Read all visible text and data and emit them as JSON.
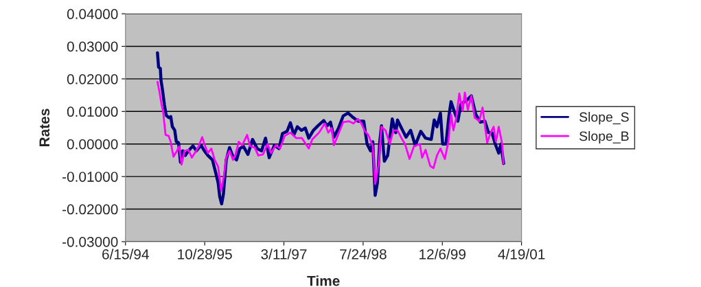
{
  "chart_data": {
    "type": "line",
    "xlabel": "Time",
    "ylabel": "Rates",
    "xlim": [
      "1994-06-15",
      "2001-04-19"
    ],
    "xticks": [
      {
        "value": "1994-06-15",
        "label": "6/15/94"
      },
      {
        "value": "1995-10-28",
        "label": "10/28/95"
      },
      {
        "value": "1997-03-11",
        "label": "3/11/97"
      },
      {
        "value": "1998-07-24",
        "label": "7/24/98"
      },
      {
        "value": "1999-12-06",
        "label": "12/6/99"
      },
      {
        "value": "2001-04-19",
        "label": "4/19/01"
      }
    ],
    "ylim": [
      -0.03,
      0.04
    ],
    "yticks": [
      {
        "value": -0.03,
        "label": "-0.03000"
      },
      {
        "value": -0.02,
        "label": "-0.02000"
      },
      {
        "value": -0.01,
        "label": "-0.01000"
      },
      {
        "value": 0,
        "label": "0.00000"
      },
      {
        "value": 0.01,
        "label": "0.01000"
      },
      {
        "value": 0.02,
        "label": "0.02000"
      },
      {
        "value": 0.03,
        "label": "0.03000"
      },
      {
        "value": 0.04,
        "label": "0.04000"
      }
    ],
    "grid": "y",
    "legend": "right",
    "marker": "none",
    "line_style": "solid",
    "series": [
      {
        "name": "Slope_S",
        "color": "#000080",
        "x": [
          "1995-01-03",
          "1995-01-10",
          "1995-01-21",
          "1995-01-25",
          "1995-02-04",
          "1995-02-16",
          "1995-02-27",
          "1995-03-16",
          "1995-03-28",
          "1995-04-07",
          "1995-04-22",
          "1995-05-02",
          "1995-05-16",
          "1995-05-28",
          "1995-06-11",
          "1995-06-28",
          "1995-07-17",
          "1995-08-15",
          "1995-09-06",
          "1995-10-05",
          "1995-10-26",
          "1995-11-17",
          "1995-12-16",
          "1996-01-07",
          "1996-01-21",
          "1996-01-31",
          "1996-02-12",
          "1996-02-23",
          "1996-03-12",
          "1996-04-02",
          "1996-04-24",
          "1996-05-16",
          "1996-06-06",
          "1996-06-28",
          "1996-07-27",
          "1996-08-25",
          "1996-09-23",
          "1996-10-21",
          "1996-11-15",
          "1996-12-08",
          "1997-01-10",
          "1997-02-08",
          "1997-03-02",
          "1997-03-31",
          "1997-04-21",
          "1997-05-13",
          "1997-06-04",
          "1997-06-30",
          "1997-07-24",
          "1997-08-15",
          "1997-09-13",
          "1997-10-12",
          "1997-11-17",
          "1997-12-09",
          "1997-12-30",
          "1998-01-21",
          "1998-02-19",
          "1998-03-20",
          "1998-04-20",
          "1998-05-16",
          "1998-06-22",
          "1998-07-28",
          "1998-08-18",
          "1998-09-09",
          "1998-09-23",
          "1998-10-08",
          "1998-10-22",
          "1998-11-06",
          "1998-11-17",
          "1998-12-05",
          "1998-12-26",
          "1999-01-24",
          "1999-02-15",
          "1999-02-26",
          "1999-03-16",
          "1999-04-21",
          "1999-05-20",
          "1999-06-18",
          "1999-07-23",
          "1999-08-22",
          "1999-09-27",
          "1999-10-16",
          "1999-11-02",
          "1999-11-24",
          "1999-12-08",
          "1999-12-29",
          "2000-01-16",
          "2000-01-30",
          "2000-02-18",
          "2000-03-13",
          "2000-04-02",
          "2000-05-08",
          "2000-06-06",
          "2000-07-04",
          "2000-08-02",
          "2000-08-31",
          "2000-09-22",
          "2000-10-14",
          "2000-11-04",
          "2000-11-26",
          "2000-12-10",
          "2000-12-27"
        ],
        "values": [
          0.028,
          0.0236,
          0.0232,
          0.0197,
          0.0165,
          0.012,
          0.0088,
          0.0081,
          0.0084,
          0.0053,
          0.0042,
          0.0007,
          0.0004,
          -0.0056,
          -0.0021,
          -0.0035,
          -0.0021,
          -0.0006,
          -0.0021,
          -0.0004,
          -0.0021,
          -0.0035,
          -0.0049,
          -0.0091,
          -0.012,
          -0.0162,
          -0.0184,
          -0.0155,
          -0.0049,
          -0.0011,
          -0.0039,
          -0.0049,
          -0.0014,
          -0.0007,
          -0.0032,
          0.0014,
          -0.0014,
          -0.0021,
          0.0018,
          -0.0042,
          -0.0004,
          -0.0014,
          0.0032,
          0.0039,
          0.0065,
          0.0028,
          0.0053,
          0.0042,
          0.0049,
          0.0018,
          0.0042,
          0.0056,
          0.0072,
          0.0056,
          0.0067,
          0.0021,
          0.0049,
          0.0086,
          0.0095,
          0.0084,
          0.007,
          0.007,
          0.0,
          -0.0021,
          0.0007,
          -0.0158,
          -0.012,
          0.0007,
          0.0056,
          -0.0053,
          -0.0035,
          0.0077,
          0.0035,
          0.0074,
          0.0056,
          0.0021,
          0.0042,
          -0.0004,
          0.0039,
          0.0018,
          0.0014,
          0.0074,
          0.0053,
          0.0095,
          0.0,
          0.0,
          0.0084,
          0.013,
          0.0102,
          0.007,
          0.0123,
          0.0134,
          0.0148,
          0.0091,
          0.0067,
          0.007,
          0.0035,
          0.0035,
          0.0,
          -0.0028,
          0.0,
          -0.006
        ]
      },
      {
        "name": "Slope_B",
        "color": "#ff00ff",
        "x": [
          "1995-01-03",
          "1995-01-15",
          "1995-01-28",
          "1995-02-08",
          "1995-02-23",
          "1995-03-14",
          "1995-03-27",
          "1995-04-14",
          "1995-05-06",
          "1995-05-20",
          "1995-06-04",
          "1995-06-23",
          "1995-07-17",
          "1995-08-08",
          "1995-08-30",
          "1995-09-20",
          "1995-10-12",
          "1995-10-26",
          "1995-11-17",
          "1995-12-09",
          "1995-12-30",
          "1996-01-21",
          "1996-02-09",
          "1996-02-26",
          "1996-03-12",
          "1996-04-02",
          "1996-04-24",
          "1996-05-08",
          "1996-05-30",
          "1996-06-21",
          "1996-07-22",
          "1996-08-10",
          "1996-09-08",
          "1996-09-30",
          "1996-10-30",
          "1996-11-28",
          "1996-12-20",
          "1997-01-18",
          "1997-02-15",
          "1997-03-16",
          "1997-04-21",
          "1997-05-28",
          "1997-07-03",
          "1997-08-15",
          "1997-09-06",
          "1997-10-19",
          "1997-11-24",
          "1997-12-16",
          "1998-01-06",
          "1998-01-21",
          "1998-02-19",
          "1998-03-20",
          "1998-04-25",
          "1998-05-24",
          "1998-06-22",
          "1998-07-13",
          "1998-08-04",
          "1998-08-26",
          "1998-09-23",
          "1998-10-08",
          "1998-10-30",
          "1998-11-17",
          "1998-12-12",
          "1999-01-09",
          "1999-01-31",
          "1999-02-26",
          "1999-03-23",
          "1999-04-14",
          "1999-05-13",
          "1999-06-10",
          "1999-07-17",
          "1999-07-31",
          "1999-08-22",
          "1999-09-20",
          "1999-10-11",
          "1999-11-02",
          "1999-11-24",
          "1999-12-22",
          "2000-01-13",
          "2000-01-30",
          "2000-02-14",
          "2000-03-03",
          "2000-03-22",
          "2000-04-13",
          "2000-04-26",
          "2000-05-15",
          "2000-06-06",
          "2000-06-27",
          "2000-07-26",
          "2000-08-16",
          "2000-09-14",
          "2000-10-06",
          "2000-10-25",
          "2000-11-08",
          "2000-11-26",
          "2000-12-18",
          "2000-12-25"
        ],
        "values": [
          0.0191,
          0.0162,
          0.0123,
          0.0098,
          0.0028,
          0.0025,
          0.0007,
          -0.0039,
          -0.0021,
          -0.0007,
          -0.0063,
          -0.0021,
          -0.0018,
          -0.0042,
          -0.0025,
          -0.0007,
          0.0021,
          0.0,
          -0.0028,
          -0.0014,
          -0.0049,
          -0.007,
          -0.0144,
          -0.0098,
          -0.0042,
          -0.0021,
          -0.0049,
          -0.0035,
          0.0007,
          -0.0004,
          0.0028,
          -0.0007,
          -0.0011,
          -0.0035,
          -0.0032,
          0.0,
          -0.0028,
          -0.0004,
          -0.0014,
          0.0025,
          0.0035,
          0.0018,
          0.0018,
          -0.0014,
          0.0014,
          0.0035,
          0.0063,
          0.0035,
          0.0049,
          -0.0004,
          0.0032,
          0.0067,
          0.007,
          0.0063,
          0.0077,
          0.0063,
          0.0039,
          0.0028,
          -0.0007,
          -0.0123,
          -0.0063,
          0.0053,
          0.0042,
          0.0,
          0.0042,
          0.0042,
          0.0018,
          0.0,
          -0.0046,
          -0.0007,
          0.0,
          -0.0042,
          -0.0018,
          -0.0067,
          -0.0074,
          -0.0035,
          -0.0014,
          -0.0046,
          0.0007,
          0.0091,
          0.0042,
          0.0081,
          0.0155,
          0.0102,
          0.0158,
          0.0105,
          0.0148,
          0.0081,
          0.007,
          0.0112,
          0.0004,
          0.0035,
          0.0053,
          0.0007,
          0.0053,
          0.0,
          -0.006
        ]
      }
    ]
  }
}
